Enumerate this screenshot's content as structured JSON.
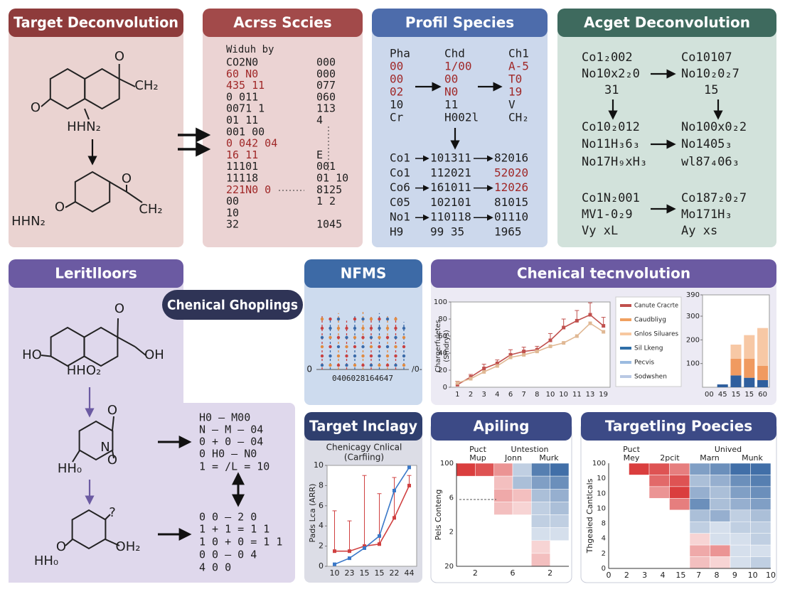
{
  "panels": {
    "a": {
      "header": "Target Deconvolution",
      "labels": [
        "O",
        "CH₂",
        "O",
        "HHN₂",
        "O",
        "CH₂",
        "O",
        "HHN₂"
      ]
    },
    "b": {
      "header": "Acrss Sccies",
      "caption": "Widuh by",
      "rows": [
        [
          "CO2N0",
          "000"
        ],
        [
          "60 N0",
          "000"
        ],
        [
          "435 11",
          "077"
        ],
        [
          "0 011",
          "060"
        ],
        [
          "0071 1",
          "113"
        ],
        [
          "01 11",
          "4"
        ],
        [
          "001 00"
        ],
        [
          "0 042 04"
        ],
        [
          "16 11",
          "E"
        ],
        [
          "11101",
          "001"
        ],
        [
          "11118",
          "01 10"
        ],
        [
          "221N0 0",
          "8125"
        ],
        [
          "00",
          "1 2"
        ],
        [
          "10"
        ],
        [
          "32",
          "1045"
        ]
      ]
    },
    "c": {
      "header": "Profil Species",
      "top_rows": [
        [
          "Pha",
          "Chd",
          "Ch1"
        ],
        [
          "00",
          "1/00",
          "A-5"
        ],
        [
          "00",
          "00",
          "T0"
        ],
        [
          "02",
          "N0",
          "19"
        ],
        [
          "10",
          "11",
          "V"
        ],
        [
          "Cr",
          "H002l",
          "CH₂"
        ]
      ],
      "bottom_rows": [
        [
          "Co1",
          "101311",
          "82016"
        ],
        [
          "Co1",
          "112021",
          "52020"
        ],
        [
          "Co6",
          "161011",
          "12026"
        ],
        [
          "C05",
          "102101",
          "81015"
        ],
        [
          "No1",
          "110118",
          "01110"
        ],
        [
          "H9",
          "99 35",
          "1965"
        ]
      ]
    },
    "d": {
      "header": "Acget Deconvolution",
      "rows": [
        [
          "Co1₂002",
          "Co10107"
        ],
        [
          "No10x2₂0",
          "No10₂0₂7"
        ],
        [
          "31",
          "15"
        ],
        [
          "Co10₂012",
          "No100x0₂2"
        ],
        [
          "No11H₃6₃",
          "No1405₃"
        ],
        [
          "No17H₉xH₃",
          "wl87₄06₃"
        ],
        [
          "Co1N₂001",
          "Co187₂0₂7"
        ],
        [
          "MV1-0₂9",
          "Mo171H₃"
        ],
        [
          "Vy  xL",
          "Ay  xs"
        ]
      ]
    },
    "e": {
      "header": "Leritlloors",
      "badge": "Chenical Ghoplings",
      "labels": [
        "O",
        "HO",
        "OH",
        "HHO₂",
        "O",
        "N",
        "O",
        "HH₀",
        "?",
        "O",
        "OH₂",
        "HH₀"
      ],
      "equations": [
        "H0 — M00",
        "N — M — 04",
        "0 + 0 — 04",
        "0 H0 — N0",
        "1 = /L = 10",
        "0 0 — 2 0",
        "1 + 1 = 1 1",
        "1 0 + 0 = 1 1",
        "0 0 — 0 4",
        "4      0 0"
      ]
    },
    "f": {
      "header": "NFMS",
      "chart": {
        "type": "stem",
        "ylim": [
          0,
          100
        ],
        "yticks": [
          0
        ],
        "right_label": "/0-",
        "x_label": "0406028164647",
        "values": [
          88,
          82,
          90,
          78,
          86,
          92,
          84,
          90,
          86,
          84,
          76
        ],
        "colors": [
          "#c84040",
          "#3a6aa8",
          "#e08a40"
        ]
      }
    },
    "g": {
      "header": "Chenical tecnvolution",
      "line_chart": {
        "type": "line",
        "y_label": [
          "Chargerfuletes",
          "(Smdrys)"
        ],
        "categories": [
          "1",
          "2",
          "3",
          "4",
          "6",
          "7",
          "8",
          "10",
          "10",
          "11",
          "13",
          "19"
        ],
        "ylim": [
          0,
          100
        ],
        "yticks": [
          0,
          20,
          40,
          60,
          80,
          100
        ],
        "series": [
          {
            "color": "#c0504d",
            "values": [
              3,
              12,
              22,
              28,
              38,
              42,
              44,
              55,
              70,
              78,
              85,
              72
            ],
            "errors": [
              4,
              3,
              5,
              4,
              6,
              5,
              4,
              8,
              10,
              12,
              14,
              10
            ]
          },
          {
            "color": "#e0b894",
            "values": [
              5,
              10,
              18,
              25,
              35,
              38,
              42,
              48,
              52,
              60,
              75,
              65
            ]
          }
        ],
        "legend": [
          {
            "name": "Canute Cracrte",
            "color": "#c0504d"
          },
          {
            "name": "Caudbliyg",
            "color": "#f0a060"
          },
          {
            "name": "Gnlos Siluares",
            "color": "#f7c8a0"
          },
          {
            "name": "Sil Lkeng",
            "color": "#2f6fa8"
          },
          {
            "name": "Pecvis",
            "color": "#9bbbe0"
          },
          {
            "name": "Sodwshen",
            "color": "#b9c9e4"
          }
        ]
      },
      "bar_chart": {
        "type": "stacked-bar",
        "categories": [
          "00",
          "45",
          "15",
          "15",
          "60"
        ],
        "ylim": [
          0,
          390
        ],
        "yticks": [
          100,
          200,
          300,
          390
        ],
        "series": [
          {
            "color": "#2f5f9e",
            "values": [
              0,
              12,
              50,
              40,
              30
            ]
          },
          {
            "color": "#f09a60",
            "values": [
              0,
              0,
              70,
              80,
              60
            ]
          },
          {
            "color": "#f7c8a5",
            "values": [
              0,
              0,
              60,
              100,
              160
            ]
          }
        ]
      }
    },
    "h": {
      "header": "Target Inclagy",
      "chart": {
        "type": "line",
        "title": [
          "Chenicagy Cnlical",
          "(Carfiing)"
        ],
        "y_label": "Pads Lca (ARR)",
        "categories": [
          "10",
          "23",
          "15",
          "15",
          "22",
          "44"
        ],
        "ylim": [
          0,
          10
        ],
        "yticks": [
          0,
          2,
          4,
          6,
          8,
          10
        ],
        "series": [
          {
            "color": "#d04040",
            "values": [
              1.5,
              1.5,
              2,
              2.2,
              4.8,
              8
            ],
            "errors": [
              4,
              3,
              7,
              5,
              4,
              1
            ]
          },
          {
            "color": "#3a78c8",
            "values": [
              0.2,
              0.8,
              1.8,
              3,
              7.5,
              9.8
            ]
          }
        ]
      }
    },
    "i": {
      "header": "Apiling",
      "heatmap": {
        "headers": [
          "Puct",
          "Mup",
          "Untestion",
          "Jonn",
          "Murk"
        ],
        "y_label": "Pels Conteng",
        "y_labels": [
          "100",
          "6",
          "2",
          "20"
        ],
        "x_labels": [
          "2",
          "6",
          "2"
        ],
        "cells": [
          [
            0.9,
            0.8,
            0.5,
            -0.3,
            -0.8,
            -0.9
          ],
          [
            null,
            null,
            0.3,
            -0.4,
            -0.6,
            -0.7
          ],
          [
            null,
            null,
            0.4,
            0.3,
            -0.4,
            -0.5
          ],
          [
            null,
            null,
            0.3,
            0.2,
            -0.3,
            -0.4
          ],
          [
            null,
            null,
            null,
            null,
            -0.3,
            -0.3
          ],
          [
            null,
            null,
            null,
            null,
            -0.2,
            -0.2
          ],
          [
            null,
            null,
            null,
            null,
            0.2,
            null
          ],
          [
            null,
            null,
            null,
            null,
            0.3,
            null
          ]
        ]
      }
    },
    "j": {
      "header": "Targetling Poecies",
      "heatmap": {
        "headers": [
          "Puct",
          "Mey",
          "2pcit",
          "Unived",
          "Marn",
          "Munk"
        ],
        "y_label": "Thgeaied Cantlcals",
        "y_labels": [
          "100",
          "10",
          "10",
          "10",
          "8",
          "4",
          "2",
          "0"
        ],
        "x_labels": [
          "0",
          "2",
          "3",
          "4",
          "15",
          "7",
          "8",
          "9",
          "10",
          "10"
        ],
        "cells": [
          [
            null,
            0.9,
            0.8,
            0.6,
            -0.6,
            -0.7,
            -0.9,
            -0.9
          ],
          [
            null,
            null,
            0.7,
            0.8,
            -0.4,
            -0.5,
            -0.7,
            -0.8
          ],
          [
            null,
            null,
            0.5,
            0.9,
            -0.5,
            -0.4,
            -0.6,
            -0.7
          ],
          [
            null,
            null,
            null,
            0.6,
            -0.7,
            -0.4,
            -0.5,
            -0.6
          ],
          [
            null,
            null,
            null,
            null,
            -0.4,
            -0.5,
            -0.3,
            -0.4
          ],
          [
            null,
            null,
            null,
            null,
            -0.3,
            -0.2,
            -0.3,
            -0.3
          ],
          [
            null,
            null,
            null,
            null,
            0.2,
            -0.2,
            -0.2,
            -0.3
          ],
          [
            null,
            null,
            null,
            null,
            0.4,
            0.5,
            -0.2,
            -0.2
          ],
          [
            null,
            null,
            null,
            null,
            0.3,
            0.2,
            -0.2,
            -0.3
          ]
        ]
      }
    }
  }
}
